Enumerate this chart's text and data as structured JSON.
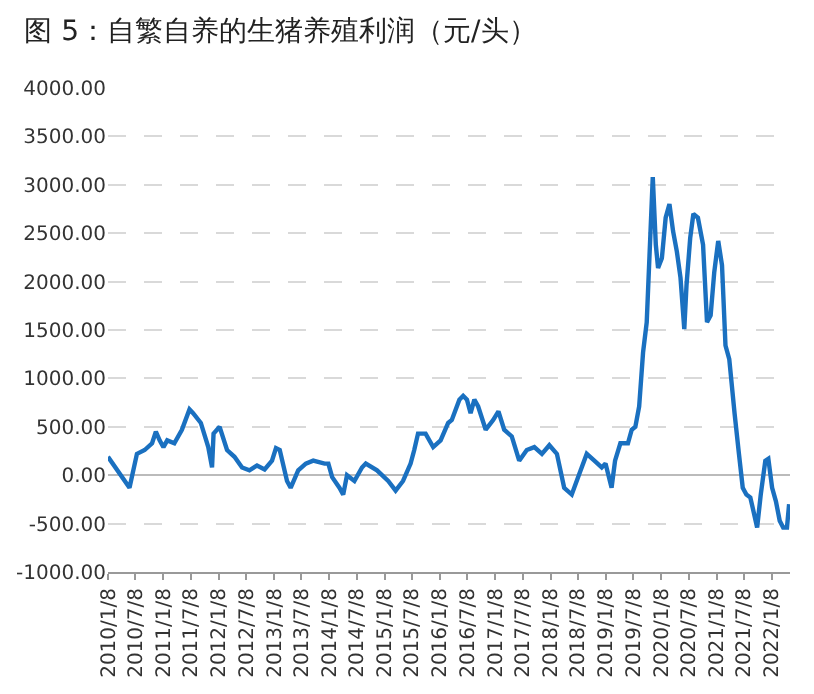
{
  "chart_data": {
    "type": "line",
    "title": "图 5：自繁自养的生猪养殖利润（元/头）",
    "x": [
      "2010-01-08",
      "2010-05-30",
      "2010-07-18",
      "2010-09-07",
      "2010-10-26",
      "2010-11-20",
      "2010-12-15",
      "2011-01-09",
      "2011-02-03",
      "2011-03-22",
      "2011-05-11",
      "2011-06-30",
      "2011-07-24",
      "2011-09-13",
      "2011-11-01",
      "2011-11-26",
      "2011-12-06",
      "2012-01-15",
      "2012-03-04",
      "2012-04-22",
      "2012-06-11",
      "2012-07-30",
      "2012-09-18",
      "2012-11-07",
      "2012-12-26",
      "2013-01-21",
      "2013-02-15",
      "2013-04-04",
      "2013-04-28",
      "2013-06-17",
      "2013-08-06",
      "2013-09-24",
      "2013-12-08",
      "2014-01-02",
      "2014-01-27",
      "2014-03-16",
      "2014-04-10",
      "2014-05-05",
      "2014-06-23",
      "2014-08-12",
      "2014-09-06",
      "2014-11-19",
      "2015-02-01",
      "2015-03-22",
      "2015-05-10",
      "2015-06-29",
      "2015-07-23",
      "2015-08-17",
      "2015-10-06",
      "2015-11-25",
      "2016-01-13",
      "2016-03-03",
      "2016-03-27",
      "2016-05-16",
      "2016-06-10",
      "2016-07-05",
      "2016-07-29",
      "2016-08-23",
      "2016-09-17",
      "2016-11-06",
      "2016-12-25",
      "2017-01-29",
      "2017-03-08",
      "2017-04-27",
      "2017-06-15",
      "2017-08-04",
      "2017-09-23",
      "2017-11-12",
      "2017-12-31",
      "2018-02-19",
      "2018-04-08",
      "2018-05-28",
      "2018-07-16",
      "2018-09-04",
      "2018-10-24",
      "2018-12-12",
      "2019-01-06",
      "2019-02-15",
      "2019-03-10",
      "2019-04-14",
      "2019-06-03",
      "2019-06-28",
      "2019-07-22",
      "2019-08-16",
      "2019-09-11",
      "2019-10-05",
      "2019-10-30",
      "2019-11-14",
      "2019-12-04",
      "2019-12-19",
      "2020-01-13",
      "2020-02-07",
      "2020-03-03",
      "2020-03-27",
      "2020-04-21",
      "2020-05-15",
      "2020-06-09",
      "2020-06-24",
      "2020-07-18",
      "2020-08-08",
      "2020-09-07",
      "2020-10-11",
      "2020-11-06",
      "2020-11-30",
      "2020-12-24",
      "2021-01-19",
      "2021-02-13",
      "2021-03-08",
      "2021-04-02",
      "2021-05-07",
      "2021-06-05",
      "2021-06-30",
      "2021-07-24",
      "2021-08-19",
      "2021-09-13",
      "2021-10-03",
      "2021-10-27",
      "2021-11-26",
      "2021-12-16",
      "2022-01-10",
      "2022-02-04",
      "2022-03-01",
      "2022-03-24",
      "2022-04-18",
      "2022-05-02"
    ],
    "series": [
      {
        "color": "#1a70c0",
        "values": [
          190,
          -130,
          220,
          260,
          330,
          450,
          360,
          290,
          360,
          330,
          470,
          680,
          640,
          540,
          290,
          80,
          430,
          500,
          260,
          190,
          80,
          50,
          100,
          60,
          150,
          280,
          260,
          -60,
          -130,
          50,
          120,
          150,
          120,
          120,
          -20,
          -130,
          -200,
          0,
          -60,
          80,
          120,
          50,
          -60,
          -160,
          -60,
          120,
          260,
          430,
          430,
          290,
          360,
          540,
          570,
          780,
          820,
          780,
          640,
          780,
          710,
          470,
          570,
          660,
          470,
          400,
          150,
          260,
          290,
          220,
          310,
          220,
          -130,
          -200,
          10,
          220,
          150,
          80,
          120,
          -130,
          150,
          330,
          330,
          470,
          500,
          710,
          1270,
          1580,
          2520,
          3080,
          2380,
          2140,
          2240,
          2660,
          2800,
          2520,
          2310,
          2040,
          1510,
          1970,
          2450,
          2700,
          2660,
          2380,
          1580,
          1650,
          2100,
          2420,
          2170,
          1340,
          1200,
          640,
          220,
          -130,
          -200,
          -230,
          -400,
          -540,
          -200,
          150,
          170,
          -130,
          -270,
          -470,
          -540,
          -540,
          -300
        ]
      }
    ],
    "xlim": [
      "2010-01-08",
      "2022-05-08"
    ],
    "xticks": [
      {
        "value": "2010-01-08",
        "label": "2010/1/8"
      },
      {
        "value": "2010-07-08",
        "label": "2010/7/8"
      },
      {
        "value": "2011-01-08",
        "label": "2011/1/8"
      },
      {
        "value": "2011-07-08",
        "label": "2011/7/8"
      },
      {
        "value": "2012-01-08",
        "label": "2012/1/8"
      },
      {
        "value": "2012-07-08",
        "label": "2012/7/8"
      },
      {
        "value": "2013-01-08",
        "label": "2013/1/8"
      },
      {
        "value": "2013-07-08",
        "label": "2013/7/8"
      },
      {
        "value": "2014-01-08",
        "label": "2014/1/8"
      },
      {
        "value": "2014-07-08",
        "label": "2014/7/8"
      },
      {
        "value": "2015-01-08",
        "label": "2015/1/8"
      },
      {
        "value": "2015-07-08",
        "label": "2015/7/8"
      },
      {
        "value": "2016-01-08",
        "label": "2016/1/8"
      },
      {
        "value": "2016-07-08",
        "label": "2016/7/8"
      },
      {
        "value": "2017-01-08",
        "label": "2017/1/8"
      },
      {
        "value": "2017-07-08",
        "label": "2017/7/8"
      },
      {
        "value": "2018-01-08",
        "label": "2018/1/8"
      },
      {
        "value": "2018-07-08",
        "label": "2018/7/8"
      },
      {
        "value": "2019-01-08",
        "label": "2019/1/8"
      },
      {
        "value": "2019-07-08",
        "label": "2019/7/8"
      },
      {
        "value": "2020-01-08",
        "label": "2020/1/8"
      },
      {
        "value": "2020-07-08",
        "label": "2020/7/8"
      },
      {
        "value": "2021-01-08",
        "label": "2021/1/8"
      },
      {
        "value": "2021-07-08",
        "label": "2021/7/8"
      },
      {
        "value": "2022-01-08",
        "label": "2022/1/8"
      }
    ],
    "ylim": [
      -1000,
      4000
    ],
    "yticks": [
      {
        "value": -1000,
        "label": "-1000.00"
      },
      {
        "value": -500,
        "label": "-500.00"
      },
      {
        "value": 0,
        "label": "0.00"
      },
      {
        "value": 500,
        "label": "500.00"
      },
      {
        "value": 1000,
        "label": "1000.00"
      },
      {
        "value": 1500,
        "label": "1500.00"
      },
      {
        "value": 2000,
        "label": "2000.00"
      },
      {
        "value": 2500,
        "label": "2500.00"
      },
      {
        "value": 3000,
        "label": "3000.00"
      },
      {
        "value": 3500,
        "label": "3500.00"
      },
      {
        "value": 4000,
        "label": "4000.00"
      }
    ],
    "grid": "y",
    "marker": "none",
    "line_style": "solid"
  }
}
